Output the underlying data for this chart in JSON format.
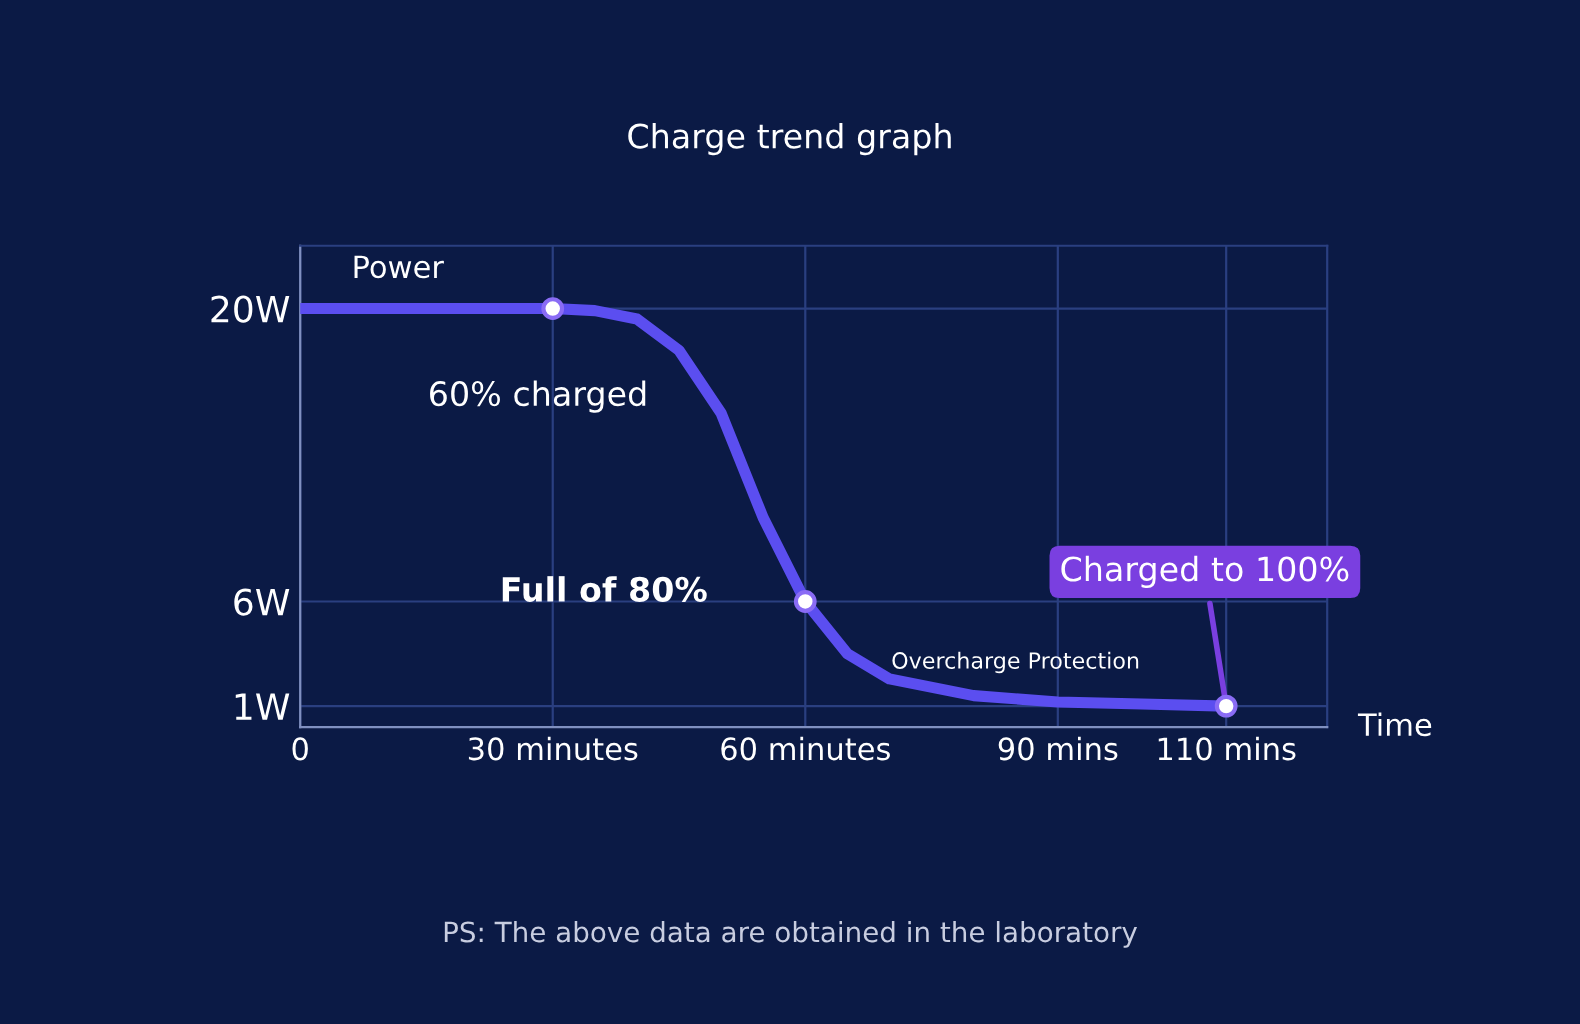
{
  "chart_data": {
    "type": "line",
    "title": "Charge trend graph",
    "xlabel": "Time",
    "ylabel": "Power",
    "x": [
      0,
      30,
      35,
      40,
      45,
      50,
      55,
      60,
      65,
      70,
      80,
      90,
      100,
      110
    ],
    "series": [
      {
        "color": "#5b4ef0",
        "values": [
          20,
          20,
          19.9,
          19.5,
          18,
          15,
          10,
          6,
          3.5,
          2.3,
          1.5,
          1.2,
          1.1,
          1
        ],
        "marker": "none"
      },
      {
        "type": "scatter",
        "color": "#ffffff",
        "x": [
          30,
          60,
          110
        ],
        "values": [
          20,
          6,
          1
        ],
        "marker": "circle"
      }
    ],
    "xlim": [
      0,
      122
    ],
    "ylim": [
      0,
      23
    ],
    "xticks": [
      0,
      {
        "value": 30,
        "label": "30 minutes"
      },
      {
        "value": 60,
        "label": "60 minutes"
      },
      {
        "value": 90,
        "label": "90 mins"
      },
      {
        "value": 110,
        "label": "110 mins"
      }
    ],
    "yticks": [
      {
        "value": 1,
        "label": "1W"
      },
      {
        "value": 6,
        "label": "6W"
      },
      {
        "value": 20,
        "label": "20W"
      }
    ],
    "grid": true,
    "legend": false,
    "annotations": [
      {
        "text": "60% charged",
        "x": 30,
        "y": 20
      },
      {
        "text": "Full of 80%",
        "x": 60,
        "y": 6
      },
      {
        "text": "Charged to 100%",
        "x": 110,
        "y": 1
      },
      {
        "text": "Overcharge Protection",
        "x": 90,
        "y": 1.2
      },
      "PS: The above data are obtained in the laboratory"
    ]
  }
}
